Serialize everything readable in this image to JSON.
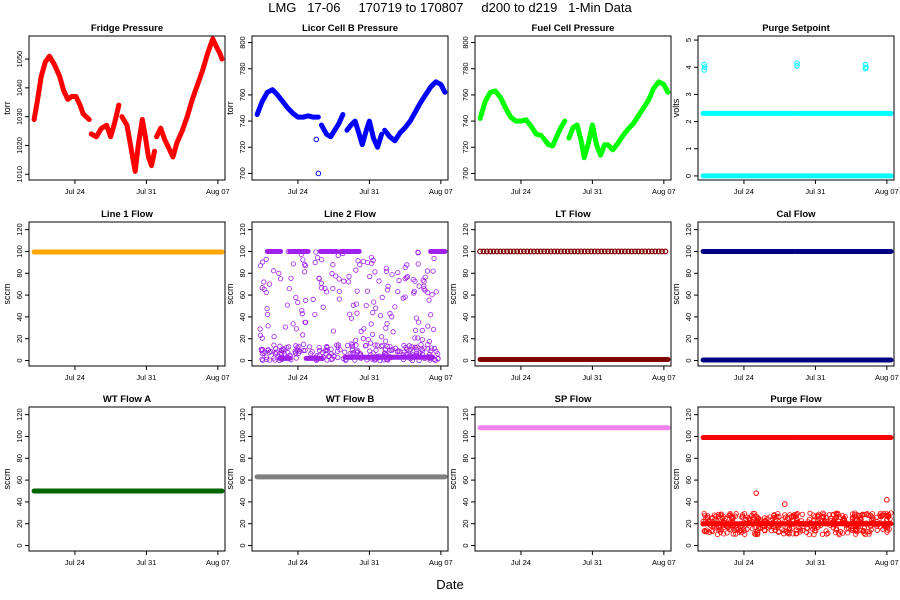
{
  "header": {
    "title": "LMG   17-06     170719 to 170807     d200 to d219   1-Min Data"
  },
  "footer": {
    "xlabel": "Date"
  },
  "chart_data": [
    {
      "type": "scatter",
      "title": "Fridge Pressure",
      "ylabel": "torr",
      "ylim": [
        1008,
        1058
      ],
      "yticks": [
        1010,
        1020,
        1030,
        1040,
        1050
      ],
      "xlim": [
        19.5,
        38.7
      ],
      "xticks": [
        {
          "v": 24,
          "label": "Jul 24"
        },
        {
          "v": 31,
          "label": "Jul 31"
        },
        {
          "v": 38,
          "label": "Aug 07"
        }
      ],
      "color": "#ff0000",
      "series": [
        {
          "x": [
            20.0,
            20.3,
            20.7,
            21.1,
            21.5,
            22.0,
            22.5,
            22.9,
            23.3,
            23.7,
            24.1,
            24.5,
            24.8,
            25.1,
            25.4
          ],
          "y": [
            1029,
            1035,
            1044,
            1049,
            1051,
            1048,
            1044,
            1039,
            1036,
            1037,
            1037,
            1034,
            1031,
            1030,
            1029
          ]
        },
        {
          "x": [
            25.6,
            26.1,
            26.6,
            27.1,
            27.5,
            27.9,
            28.3
          ],
          "y": [
            1024,
            1023,
            1026,
            1027,
            1023,
            1028,
            1034
          ]
        },
        {
          "x": [
            28.6,
            29.1,
            29.5,
            29.9,
            30.2,
            30.6,
            30.9,
            31.2,
            31.5,
            31.8
          ],
          "y": [
            1030,
            1027,
            1019,
            1011,
            1020,
            1029,
            1023,
            1016,
            1013,
            1018
          ]
        },
        {
          "x": [
            32.0,
            32.4,
            32.8,
            33.2,
            33.6,
            34.0,
            34.5,
            35.0,
            35.5,
            36.0,
            36.5,
            37.0,
            37.5,
            37.9,
            38.2,
            38.4
          ],
          "y": [
            1023,
            1026,
            1022,
            1019,
            1016,
            1021,
            1025,
            1030,
            1036,
            1041,
            1046,
            1052,
            1057,
            1054,
            1052,
            1050
          ]
        }
      ],
      "outliers": []
    },
    {
      "type": "scatter",
      "title": "Licor Cell B Pressure",
      "ylabel": "torr",
      "ylim": [
        695,
        805
      ],
      "yticks": [
        700,
        720,
        740,
        760,
        780,
        800
      ],
      "xlim": [
        19.5,
        38.7
      ],
      "xticks": [
        {
          "v": 24,
          "label": "Jul 24"
        },
        {
          "v": 31,
          "label": "Jul 31"
        },
        {
          "v": 38,
          "label": "Aug 07"
        }
      ],
      "color": "#0000ff",
      "series": [
        {
          "x": [
            20.0,
            20.5,
            21.0,
            21.5,
            22.0,
            22.5,
            23.0,
            23.5,
            24.0,
            24.5,
            25.0,
            25.5,
            26.0
          ],
          "y": [
            745,
            755,
            762,
            764,
            760,
            755,
            750,
            746,
            743,
            743,
            744,
            743,
            743
          ]
        },
        {
          "x": [
            26.3,
            26.8,
            27.2,
            27.6,
            28.0,
            28.4
          ],
          "y": [
            737,
            730,
            728,
            733,
            738,
            745
          ]
        },
        {
          "x": [
            28.8,
            29.2,
            29.6,
            30.0,
            30.3,
            30.7,
            31.0,
            31.4,
            31.8,
            32.2
          ],
          "y": [
            733,
            737,
            740,
            730,
            722,
            733,
            740,
            727,
            720,
            730
          ]
        },
        {
          "x": [
            32.5,
            33.0,
            33.5,
            34.0,
            34.5,
            35.0,
            35.5,
            36.0,
            36.5,
            37.0,
            37.5,
            38.0,
            38.4
          ],
          "y": [
            733,
            728,
            725,
            731,
            735,
            740,
            747,
            754,
            760,
            766,
            770,
            768,
            762
          ]
        }
      ],
      "outliers": [
        {
          "x": 25.8,
          "y": 726
        },
        {
          "x": 26.0,
          "y": 700
        }
      ]
    },
    {
      "type": "scatter",
      "title": "Fuel Cell Pressure",
      "ylabel": "",
      "ylim": [
        695,
        805
      ],
      "yticks": [
        700,
        720,
        740,
        760,
        780,
        800
      ],
      "xlim": [
        19.5,
        38.7
      ],
      "xticks": [
        {
          "v": 24,
          "label": "Jul 24"
        },
        {
          "v": 31,
          "label": "Jul 31"
        },
        {
          "v": 38,
          "label": "Aug 07"
        }
      ],
      "color": "#00ff00",
      "series": [
        {
          "x": [
            20.0,
            20.5,
            21.0,
            21.5,
            22.0,
            22.5,
            23.0,
            23.5,
            24.0,
            24.5,
            25.0,
            25.5,
            26.0
          ],
          "y": [
            742,
            755,
            762,
            763,
            758,
            750,
            743,
            740,
            740,
            741,
            736,
            730,
            729
          ]
        },
        {
          "x": [
            26.2,
            26.7,
            27.1,
            27.5,
            27.9,
            28.3
          ],
          "y": [
            727,
            722,
            721,
            728,
            735,
            740
          ]
        },
        {
          "x": [
            28.7,
            29.1,
            29.5,
            29.9,
            30.2,
            30.6,
            31.0,
            31.4,
            31.8,
            32.2
          ],
          "y": [
            727,
            735,
            737,
            725,
            712,
            723,
            737,
            722,
            714,
            722
          ]
        },
        {
          "x": [
            32.5,
            33.0,
            33.5,
            34.0,
            34.5,
            35.0,
            35.5,
            36.0,
            36.5,
            37.0,
            37.5,
            38.0,
            38.4
          ],
          "y": [
            722,
            718,
            723,
            729,
            734,
            738,
            744,
            750,
            756,
            765,
            770,
            768,
            762
          ]
        }
      ],
      "outliers": []
    },
    {
      "type": "scatter",
      "title": "Purge Setpoint",
      "ylabel": "volts",
      "ylim": [
        -0.15,
        5.15
      ],
      "yticks": [
        0,
        1,
        2,
        3,
        4,
        5
      ],
      "xlim": [
        19.5,
        38.7
      ],
      "xticks": [
        {
          "v": 24,
          "label": "Jul 24"
        },
        {
          "v": 31,
          "label": "Jul 31"
        },
        {
          "v": 38,
          "label": "Aug 07"
        }
      ],
      "color": "#00ffff",
      "series": [
        {
          "x": [
            20.0,
            28.9
          ],
          "y": [
            2.3,
            2.3
          ]
        },
        {
          "x": [
            29.1,
            38.4
          ],
          "y": [
            2.3,
            2.3
          ]
        },
        {
          "x": [
            20.0,
            38.4
          ],
          "y": [
            0.0,
            0.0
          ]
        }
      ],
      "outliers": [
        {
          "x": 20.1,
          "y": 4.1
        },
        {
          "x": 20.1,
          "y": 3.9
        },
        {
          "x": 20.15,
          "y": 4.0
        },
        {
          "x": 29.2,
          "y": 4.15
        },
        {
          "x": 29.2,
          "y": 4.05
        },
        {
          "x": 35.9,
          "y": 4.1
        },
        {
          "x": 35.9,
          "y": 3.95
        },
        {
          "x": 35.95,
          "y": 4.0
        }
      ]
    },
    {
      "type": "scatter",
      "title": "Line 1 Flow",
      "ylabel": "sccm",
      "ylim": [
        -5,
        127
      ],
      "yticks": [
        0,
        20,
        40,
        60,
        80,
        100,
        120
      ],
      "xlim": [
        19.5,
        38.7
      ],
      "xticks": [
        {
          "v": 24,
          "label": "Jul 24"
        },
        {
          "v": 31,
          "label": "Jul 31"
        },
        {
          "v": 38,
          "label": "Aug 07"
        }
      ],
      "color": "#ffa500",
      "series": [
        {
          "x": [
            20.0,
            38.4
          ],
          "y": [
            99.5,
            99.5
          ]
        }
      ],
      "outliers": []
    },
    {
      "type": "scatter",
      "title": "Line 2 Flow",
      "ylabel": "sccm",
      "ylim": [
        -5,
        127
      ],
      "yticks": [
        0,
        20,
        40,
        60,
        80,
        100,
        120
      ],
      "xlim": [
        19.5,
        38.7
      ],
      "xticks": [
        {
          "v": 24,
          "label": "Jul 24"
        },
        {
          "v": 31,
          "label": "Jul 31"
        },
        {
          "v": 38,
          "label": "Aug 07"
        }
      ],
      "color": "#a020f0",
      "series": [
        {
          "x": [
            21.0,
            22.3
          ],
          "y": [
            100,
            100
          ]
        },
        {
          "x": [
            23.2,
            25.0
          ],
          "y": [
            100,
            100
          ]
        },
        {
          "x": [
            26.2,
            27.8
          ],
          "y": [
            100,
            100
          ]
        },
        {
          "x": [
            28.2,
            30.0
          ],
          "y": [
            100,
            100
          ]
        },
        {
          "x": [
            37.0,
            38.4
          ],
          "y": [
            100,
            100
          ]
        },
        {
          "x": [
            22.2,
            23.2
          ],
          "y": [
            2,
            2
          ]
        },
        {
          "x": [
            24.8,
            26.3
          ],
          "y": [
            2,
            2
          ]
        },
        {
          "x": [
            28.6,
            37.2
          ],
          "y": [
            3,
            3
          ]
        }
      ],
      "scatter": [
        {
          "x": [
            20.3,
            37.8
          ],
          "y": [
            0,
            100
          ]
        }
      ],
      "outliers": []
    },
    {
      "type": "scatter",
      "title": "LT Flow",
      "ylabel": "sccm",
      "ylim": [
        -5,
        127
      ],
      "yticks": [
        0,
        20,
        40,
        60,
        80,
        100,
        120
      ],
      "xlim": [
        19.5,
        38.7
      ],
      "xticks": [
        {
          "v": 24,
          "label": "Jul 24"
        },
        {
          "v": 31,
          "label": "Jul 31"
        },
        {
          "v": 38,
          "label": "Aug 07"
        }
      ],
      "color": "#800000",
      "series": [
        {
          "x": [
            20.0,
            38.4
          ],
          "y": [
            1,
            1
          ]
        }
      ],
      "dotted": [
        {
          "x": [
            20.0,
            38.4
          ],
          "y": [
            100,
            100
          ],
          "step": 0.33
        }
      ],
      "outliers": []
    },
    {
      "type": "scatter",
      "title": "Cal Flow",
      "ylabel": "sccm",
      "ylim": [
        -5,
        127
      ],
      "yticks": [
        0,
        20,
        40,
        60,
        80,
        100,
        120
      ],
      "xlim": [
        19.5,
        38.7
      ],
      "xticks": [
        {
          "v": 24,
          "label": "Jul 24"
        },
        {
          "v": 31,
          "label": "Jul 31"
        },
        {
          "v": 38,
          "label": "Aug 07"
        }
      ],
      "color": "#000080",
      "series": [
        {
          "x": [
            20.0,
            28.9
          ],
          "y": [
            100,
            100
          ]
        },
        {
          "x": [
            29.1,
            38.4
          ],
          "y": [
            100,
            100
          ]
        },
        {
          "x": [
            20.0,
            38.4
          ],
          "y": [
            0.5,
            0.5
          ]
        }
      ],
      "outliers": []
    },
    {
      "type": "scatter",
      "title": "WT Flow A",
      "ylabel": "sccm",
      "ylim": [
        -5,
        127
      ],
      "yticks": [
        0,
        20,
        40,
        60,
        80,
        100,
        120
      ],
      "xlim": [
        19.5,
        38.7
      ],
      "xticks": [
        {
          "v": 24,
          "label": "Jul 24"
        },
        {
          "v": 31,
          "label": "Jul 31"
        },
        {
          "v": 38,
          "label": "Aug 07"
        }
      ],
      "color": "#006400",
      "series": [
        {
          "x": [
            20.0,
            38.4
          ],
          "y": [
            50,
            50
          ]
        }
      ],
      "outliers": []
    },
    {
      "type": "scatter",
      "title": "WT Flow B",
      "ylabel": "sccm",
      "ylim": [
        -5,
        127
      ],
      "yticks": [
        0,
        20,
        40,
        60,
        80,
        100,
        120
      ],
      "xlim": [
        19.5,
        38.7
      ],
      "xticks": [
        {
          "v": 24,
          "label": "Jul 24"
        },
        {
          "v": 31,
          "label": "Jul 31"
        },
        {
          "v": 38,
          "label": "Aug 07"
        }
      ],
      "color": "#808080",
      "series": [
        {
          "x": [
            20.0,
            38.4
          ],
          "y": [
            63,
            63
          ]
        }
      ],
      "outliers": []
    },
    {
      "type": "scatter",
      "title": "SP Flow",
      "ylabel": "sccm",
      "ylim": [
        -5,
        127
      ],
      "yticks": [
        0,
        20,
        40,
        60,
        80,
        100,
        120
      ],
      "xlim": [
        19.5,
        38.7
      ],
      "xticks": [
        {
          "v": 24,
          "label": "Jul 24"
        },
        {
          "v": 31,
          "label": "Jul 31"
        },
        {
          "v": 38,
          "label": "Aug 07"
        }
      ],
      "color": "#ee82ee",
      "series": [
        {
          "x": [
            20.0,
            38.4
          ],
          "y": [
            108,
            108
          ]
        }
      ],
      "outliers": []
    },
    {
      "type": "scatter",
      "title": "Purge Flow",
      "ylabel": "sccm",
      "ylim": [
        -5,
        127
      ],
      "yticks": [
        0,
        20,
        40,
        60,
        80,
        100,
        120
      ],
      "xlim": [
        19.5,
        38.7
      ],
      "xticks": [
        {
          "v": 24,
          "label": "Jul 24"
        },
        {
          "v": 31,
          "label": "Jul 31"
        },
        {
          "v": 38,
          "label": "Aug 07"
        }
      ],
      "color": "#ff0000",
      "series": [
        {
          "x": [
            20.0,
            28.9
          ],
          "y": [
            99,
            99
          ]
        },
        {
          "x": [
            29.1,
            38.4
          ],
          "y": [
            99,
            99
          ]
        },
        {
          "x": [
            20.0,
            38.4
          ],
          "y": [
            20,
            20
          ]
        }
      ],
      "band": {
        "x": [
          20.0,
          38.4
        ],
        "y": [
          10,
          30
        ]
      },
      "outliers": [
        {
          "x": 25.2,
          "y": 48
        },
        {
          "x": 28.0,
          "y": 38
        },
        {
          "x": 38.0,
          "y": 42
        }
      ]
    }
  ]
}
